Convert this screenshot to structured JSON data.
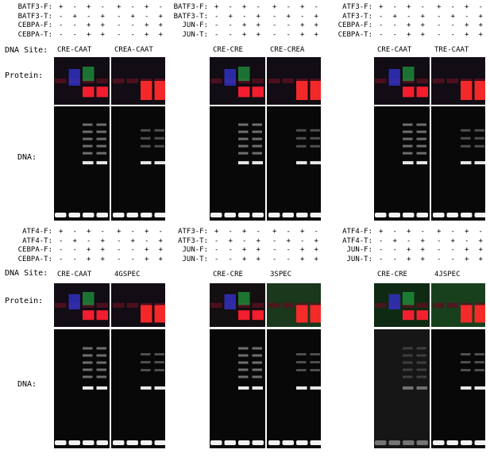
{
  "side_labels": {
    "dna_site": "DNA Site:",
    "protein": "Protein:",
    "dna": "DNA:"
  },
  "panels": [
    {
      "rows": [
        "BATF3-F:",
        "BATF3-T:",
        "CEBPA-F:",
        "CEBPA-T:"
      ],
      "signs": [
        [
          "+",
          "-",
          "+",
          "-",
          "+",
          "-",
          "+",
          "-"
        ],
        [
          "-",
          "+",
          "-",
          "+",
          "-",
          "+",
          "-",
          "+"
        ],
        [
          "-",
          "-",
          "+",
          "+",
          "-",
          "-",
          "+",
          "+"
        ],
        [
          "-",
          "-",
          "+",
          "+",
          "-",
          "-",
          "+",
          "+"
        ]
      ],
      "sites": [
        "CRE-CAAT",
        "CREA-CAAT"
      ]
    },
    {
      "rows": [
        "BATF3-F:",
        "BATF3-T:",
        "JUN-F:",
        "JUN-T:"
      ],
      "signs": [
        [
          "+",
          "-",
          "+",
          "-",
          "+",
          "-",
          "+",
          "-"
        ],
        [
          "-",
          "+",
          "-",
          "+",
          "-",
          "+",
          "-",
          "+"
        ],
        [
          "-",
          "-",
          "+",
          "+",
          "-",
          "-",
          "+",
          "+"
        ],
        [
          "-",
          "-",
          "+",
          "+",
          "-",
          "-",
          "+",
          "+"
        ]
      ],
      "sites": [
        "CRE-CRE",
        "CRE-CREA"
      ]
    },
    {
      "rows": [
        "ATF3-F:",
        "ATF3-T:",
        "CEBPA-F:",
        "CEBPA-T:"
      ],
      "signs": [
        [
          "+",
          "-",
          "+",
          "-",
          "+",
          "-",
          "+",
          "-"
        ],
        [
          "-",
          "+",
          "-",
          "+",
          "-",
          "+",
          "-",
          "+"
        ],
        [
          "-",
          "-",
          "+",
          "+",
          "-",
          "-",
          "+",
          "+"
        ],
        [
          "-",
          "-",
          "+",
          "+",
          "-",
          "-",
          "+",
          "+"
        ]
      ],
      "sites": [
        "CRE-CAAT",
        "TRE-CAAT"
      ]
    },
    {
      "rows": [
        "ATF4-F:",
        "ATF4-T:",
        "CEBPA-F:",
        "CEBPA-T:"
      ],
      "signs": [
        [
          "+",
          "-",
          "+",
          "-",
          "+",
          "-",
          "+",
          "-"
        ],
        [
          "-",
          "+",
          "-",
          "+",
          "-",
          "+",
          "-",
          "+"
        ],
        [
          "-",
          "-",
          "+",
          "+",
          "-",
          "-",
          "+",
          "+"
        ],
        [
          "-",
          "-",
          "+",
          "+",
          "-",
          "-",
          "+",
          "+"
        ]
      ],
      "sites": [
        "CRE-CAAT",
        "4GSPEC"
      ]
    },
    {
      "rows": [
        "ATF3-F:",
        "ATF3-T:",
        "JUN-F:",
        "JUN-T:"
      ],
      "signs": [
        [
          "+",
          "-",
          "+",
          "-",
          "+",
          "-",
          "+",
          "-"
        ],
        [
          "-",
          "+",
          "-",
          "+",
          "-",
          "+",
          "-",
          "+"
        ],
        [
          "-",
          "-",
          "+",
          "+",
          "-",
          "-",
          "+",
          "+"
        ],
        [
          "-",
          "-",
          "+",
          "+",
          "-",
          "-",
          "+",
          "+"
        ]
      ],
      "sites": [
        "CRE-CRE",
        "3SPEC"
      ]
    },
    {
      "rows": [
        "ATF4-F:",
        "ATF4-T:",
        "JUN-F:",
        "JUN-T:"
      ],
      "signs": [
        [
          "+",
          "-",
          "+",
          "-",
          "+",
          "-",
          "+",
          "-"
        ],
        [
          "-",
          "+",
          "-",
          "+",
          "-",
          "+",
          "-",
          "+"
        ],
        [
          "-",
          "-",
          "+",
          "+",
          "-",
          "-",
          "+",
          "+"
        ],
        [
          "-",
          "-",
          "+",
          "+",
          "-",
          "-",
          "+",
          "+"
        ]
      ],
      "sites": [
        "CRE-CRE",
        "4JSPEC"
      ]
    }
  ]
}
